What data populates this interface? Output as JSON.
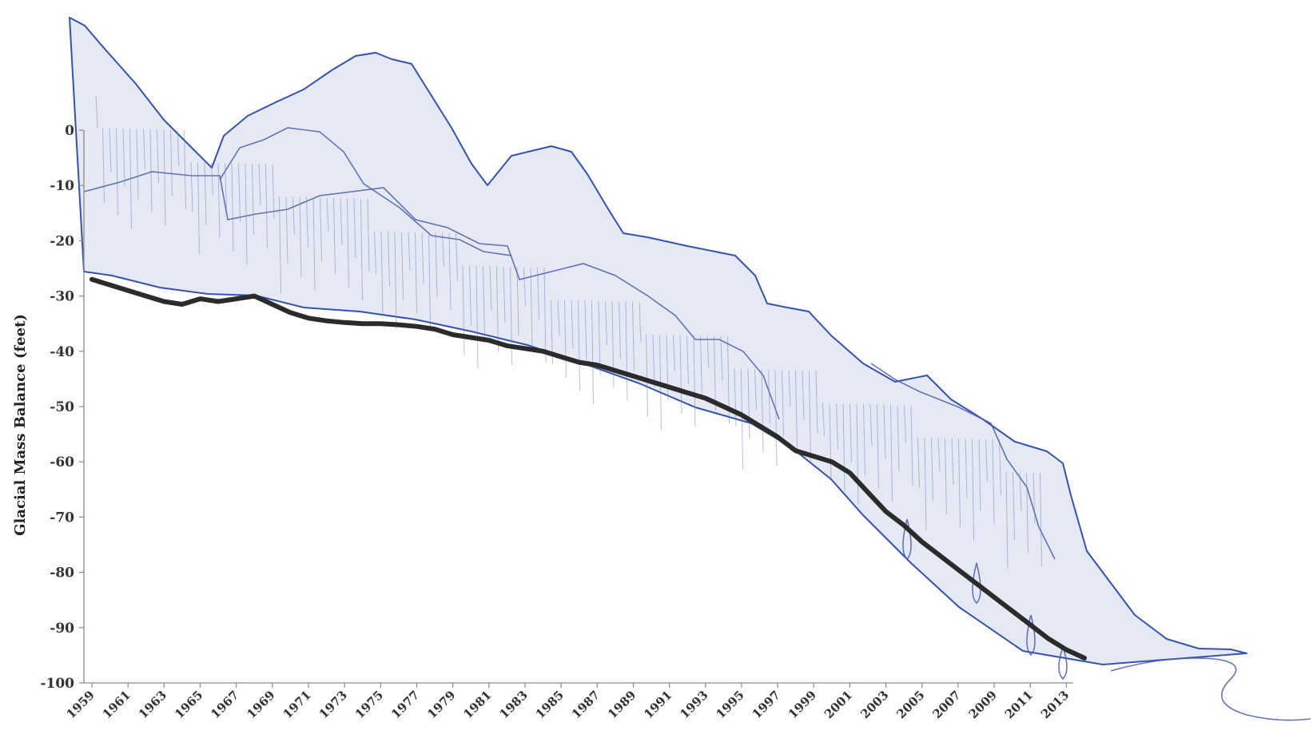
{
  "chart_data": {
    "type": "line",
    "ylabel": "Glacial Mass Balance (feet)",
    "xlabel": "",
    "ylim": [
      -100,
      0
    ],
    "yticks": [
      0,
      -10,
      -20,
      -30,
      -40,
      -50,
      -60,
      -70,
      -80,
      -90,
      -100
    ],
    "xlim": [
      1959,
      2014
    ],
    "xticks": [
      "1959",
      "1961",
      "1963",
      "1965",
      "1967",
      "1969",
      "1971",
      "1973",
      "1975",
      "1977",
      "1979",
      "1981",
      "1983",
      "1985",
      "1987",
      "1989",
      "1991",
      "1993",
      "1995",
      "1997",
      "1999",
      "2001",
      "2003",
      "2005",
      "2007",
      "2009",
      "2011",
      "2013"
    ],
    "grid": false,
    "legend": "none",
    "colors": {
      "series": "#2b2b2b",
      "sketch": "#3552b0",
      "axis": "#8a8a8a",
      "text": "#333333"
    },
    "series": [
      {
        "x": [
          1959,
          1960,
          1961,
          1962,
          1963,
          1964,
          1965,
          1966,
          1967,
          1968,
          1969,
          1970,
          1971,
          1972,
          1973,
          1974,
          1975,
          1976,
          1977,
          1978,
          1979,
          1980,
          1981,
          1982,
          1983,
          1984,
          1985,
          1986,
          1987,
          1988,
          1989,
          1990,
          1991,
          1992,
          1993,
          1994,
          1995,
          1996,
          1997,
          1998,
          1999,
          2000,
          2001,
          2002,
          2003,
          2004,
          2005,
          2006,
          2007,
          2008,
          2009,
          2010,
          2011,
          2012,
          2013,
          2014
        ],
        "values": [
          -27,
          -28,
          -29,
          -30,
          -31,
          -31.5,
          -30.5,
          -31,
          -30.5,
          -30,
          -31.5,
          -33,
          -34,
          -34.5,
          -34.8,
          -35,
          -35,
          -35.2,
          -35.5,
          -36,
          -37,
          -37.5,
          -38,
          -39,
          -39.5,
          -40,
          -41,
          -42,
          -42.5,
          -43.5,
          -44.5,
          -45.5,
          -46.5,
          -47.5,
          -48.5,
          -50,
          -51.5,
          -53.5,
          -55.5,
          -58,
          -59,
          -60,
          -62,
          -65.5,
          -69,
          -71.5,
          -74.5,
          -77,
          -79.5,
          -82,
          -84.5,
          -87,
          -89.5,
          -92,
          -94,
          -95.5
        ]
      }
    ]
  }
}
